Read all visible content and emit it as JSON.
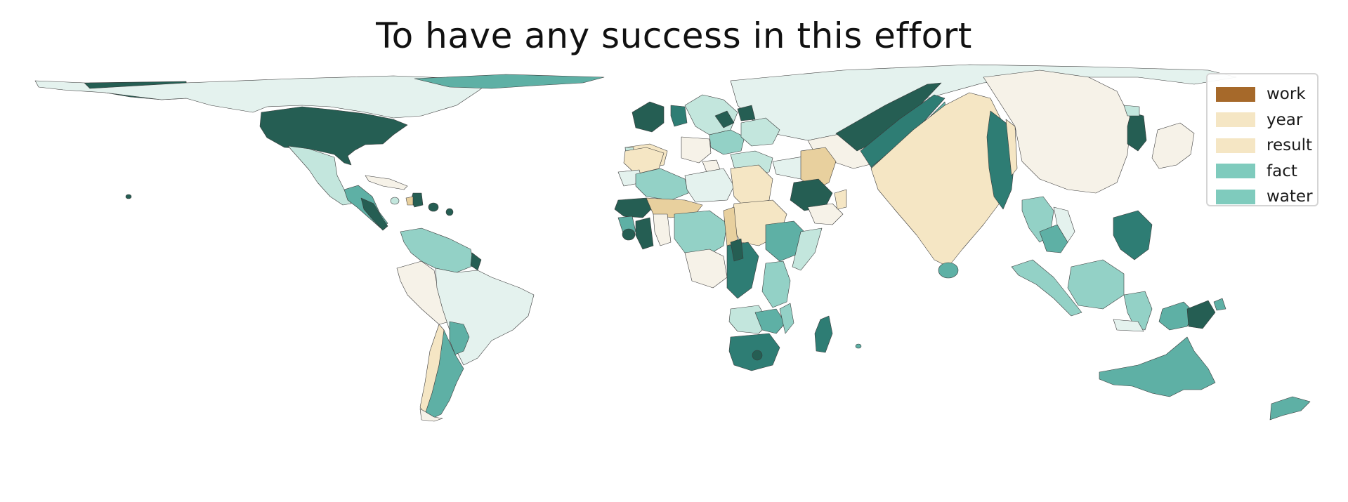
{
  "title": "To have any success in this effort",
  "legend": {
    "items": [
      {
        "label": "work",
        "color": "#a6692a"
      },
      {
        "label": "year",
        "color": "#f5e6c4"
      },
      {
        "label": "result",
        "color": "#f5e6c4"
      },
      {
        "label": "fact",
        "color": "#7fcbbd"
      },
      {
        "label": "water",
        "color": "#7fcbbd"
      }
    ]
  },
  "palette": {
    "lightest": "#e4f2ee",
    "light": "#c3e6dd",
    "mid": "#93d1c6",
    "teal": "#5eb0a5",
    "dark_teal": "#2e7d74",
    "darkest": "#255e53",
    "cream": "#f6f2e8",
    "wheat": "#f5e6c4",
    "tan": "#e8d09e",
    "border": "#3a3a3a"
  }
}
